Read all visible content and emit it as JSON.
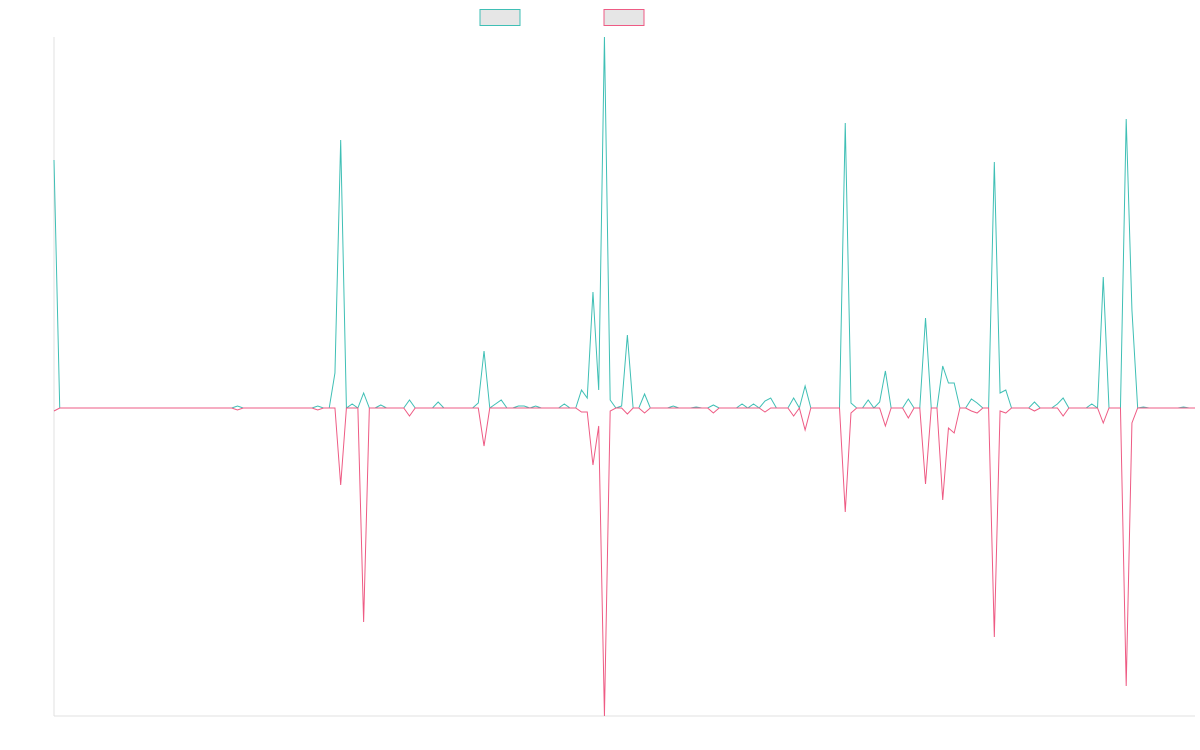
{
  "chart_data": {
    "type": "line",
    "ylim": [
      -308,
      371
    ],
    "series": [
      {
        "color": "#3fbfb5",
        "values": [
          248,
          0,
          0,
          0,
          0,
          0,
          0,
          0,
          0,
          0,
          0,
          0,
          0,
          0,
          0,
          0,
          0,
          0,
          0,
          0,
          0,
          0,
          0,
          0,
          0,
          0,
          0,
          0,
          0,
          0,
          0,
          0,
          2,
          0,
          0,
          0,
          0,
          0,
          0,
          0,
          0,
          0,
          0,
          0,
          0,
          0,
          2,
          0,
          0,
          35,
          268,
          0,
          4,
          0,
          15,
          0,
          0,
          3,
          0,
          0,
          0,
          0,
          8,
          0,
          0,
          0,
          0,
          6,
          0,
          0,
          0,
          0,
          0,
          0,
          5,
          57,
          0,
          4,
          8,
          0,
          0,
          2,
          2,
          0,
          2,
          0,
          0,
          0,
          0,
          4,
          0,
          0,
          18,
          10,
          116,
          18,
          371,
          8,
          0,
          2,
          73,
          0,
          0,
          14,
          0,
          0,
          0,
          0,
          2,
          0,
          0,
          0,
          1,
          0,
          0,
          3,
          0,
          0,
          0,
          0,
          4,
          0,
          4,
          0,
          7,
          10,
          0,
          0,
          0,
          10,
          0,
          22,
          0,
          0,
          0,
          0,
          0,
          0,
          285,
          5,
          0,
          0,
          8,
          0,
          6,
          37,
          0,
          0,
          0,
          9,
          0,
          0,
          90,
          0,
          0,
          42,
          25,
          25,
          0,
          0,
          9,
          5,
          0,
          0,
          246,
          15,
          18,
          0,
          0,
          0,
          0,
          6,
          0,
          0,
          0,
          4,
          10,
          0,
          0,
          0,
          0,
          4,
          0,
          131,
          0,
          0,
          0,
          289,
          98,
          0,
          1,
          0,
          0,
          0,
          0,
          0,
          0,
          1,
          0,
          0
        ]
      },
      {
        "color": "#ee5b84",
        "values": [
          -3,
          0,
          0,
          0,
          0,
          0,
          0,
          0,
          0,
          0,
          0,
          0,
          0,
          0,
          0,
          0,
          0,
          0,
          0,
          0,
          0,
          0,
          0,
          0,
          0,
          0,
          0,
          0,
          0,
          0,
          0,
          0,
          -2,
          0,
          0,
          0,
          0,
          0,
          0,
          0,
          0,
          0,
          0,
          0,
          0,
          0,
          -2,
          0,
          0,
          0,
          -77,
          0,
          0,
          0,
          -214,
          0,
          0,
          0,
          0,
          0,
          0,
          0,
          -8,
          0,
          0,
          0,
          0,
          0,
          0,
          0,
          0,
          0,
          0,
          0,
          0,
          -38,
          0,
          0,
          0,
          0,
          0,
          0,
          0,
          0,
          0,
          0,
          0,
          0,
          0,
          0,
          0,
          0,
          -4,
          -4,
          -57,
          -18,
          -308,
          -3,
          0,
          0,
          -6,
          0,
          0,
          -5,
          0,
          0,
          0,
          0,
          0,
          0,
          0,
          0,
          0,
          0,
          0,
          -5,
          0,
          0,
          0,
          0,
          0,
          0,
          0,
          0,
          -4,
          0,
          0,
          0,
          0,
          -8,
          0,
          -22,
          0,
          0,
          0,
          0,
          0,
          0,
          -104,
          -5,
          0,
          0,
          0,
          0,
          0,
          -18,
          0,
          0,
          0,
          -10,
          0,
          0,
          -76,
          0,
          0,
          -92,
          -20,
          -25,
          0,
          0,
          -3,
          -5,
          0,
          0,
          -229,
          -3,
          -5,
          0,
          0,
          0,
          0,
          -3,
          0,
          0,
          0,
          0,
          -8,
          0,
          0,
          0,
          0,
          0,
          0,
          -15,
          0,
          0,
          0,
          -278,
          -15,
          0,
          0,
          0,
          0,
          0,
          0,
          0,
          0,
          0,
          0,
          0
        ]
      }
    ]
  }
}
